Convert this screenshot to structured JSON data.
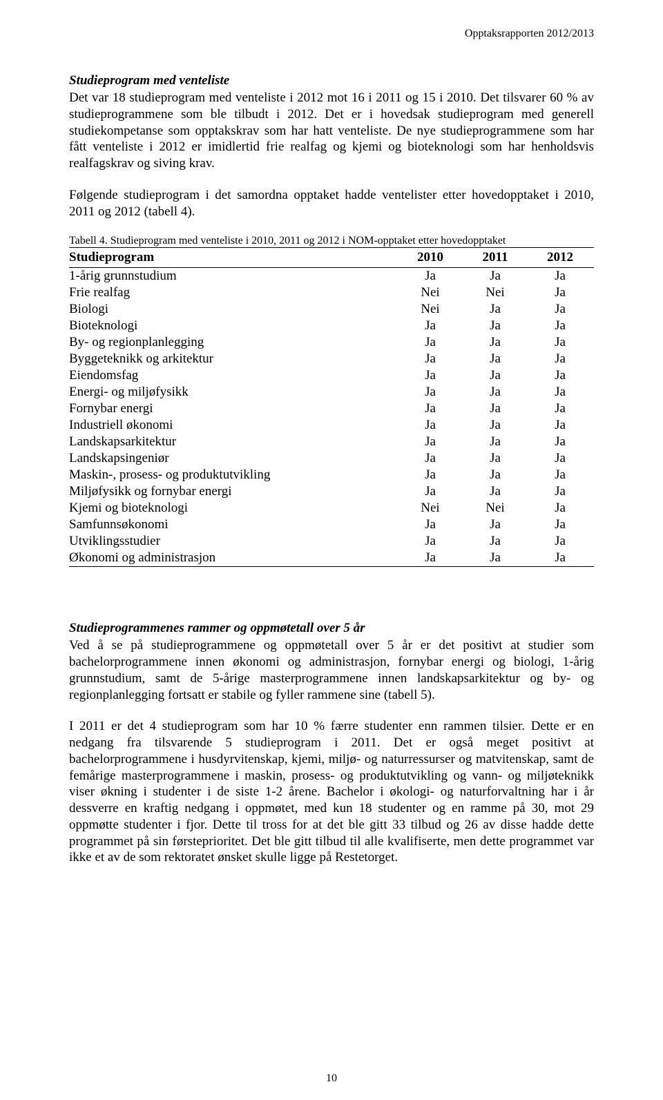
{
  "header_right": "Opptaksrapporten 2012/2013",
  "section1": {
    "title": "Studieprogram med venteliste",
    "para1": "Det var 18 studieprogram med venteliste i 2012 mot 16 i 2011 og 15 i 2010. Det tilsvarer 60 % av studieprogrammene som ble tilbudt i 2012. Det er i hovedsak studieprogram med generell studiekompetanse som opptakskrav som har hatt venteliste. De nye studieprogrammene som har fått venteliste i 2012 er imidlertid frie realfag og kjemi og bioteknologi som har henholdsvis realfagskrav og siving krav.",
    "para2": "Følgende studieprogram i det samordna opptaket hadde ventelister etter hovedopptaket i 2010, 2011 og 2012 (tabell 4).",
    "table_caption": "Tabell 4. Studieprogram med venteliste i 2010, 2011 og 2012 i NOM-opptaket etter hovedopptaket"
  },
  "table": {
    "col_program": "Studieprogram",
    "col_2010": "2010",
    "col_2011": "2011",
    "col_2012": "2012",
    "rows": [
      {
        "name": "1-årig grunnstudium",
        "y2010": "Ja",
        "y2011": "Ja",
        "y2012": "Ja"
      },
      {
        "name": "Frie realfag",
        "y2010": "Nei",
        "y2011": "Nei",
        "y2012": "Ja"
      },
      {
        "name": "Biologi",
        "y2010": "Nei",
        "y2011": "Ja",
        "y2012": "Ja"
      },
      {
        "name": "Bioteknologi",
        "y2010": "Ja",
        "y2011": "Ja",
        "y2012": "Ja"
      },
      {
        "name": "By- og regionplanlegging",
        "y2010": "Ja",
        "y2011": "Ja",
        "y2012": "Ja"
      },
      {
        "name": "Byggeteknikk og arkitektur",
        "y2010": "Ja",
        "y2011": "Ja",
        "y2012": "Ja"
      },
      {
        "name": "Eiendomsfag",
        "y2010": "Ja",
        "y2011": "Ja",
        "y2012": "Ja"
      },
      {
        "name": "Energi- og miljøfysikk",
        "y2010": "Ja",
        "y2011": "Ja",
        "y2012": "Ja"
      },
      {
        "name": "Fornybar energi",
        "y2010": "Ja",
        "y2011": "Ja",
        "y2012": "Ja"
      },
      {
        "name": "Industriell økonomi",
        "y2010": "Ja",
        "y2011": "Ja",
        "y2012": "Ja"
      },
      {
        "name": "Landskapsarkitektur",
        "y2010": "Ja",
        "y2011": "Ja",
        "y2012": "Ja"
      },
      {
        "name": "Landskapsingeniør",
        "y2010": "Ja",
        "y2011": "Ja",
        "y2012": "Ja"
      },
      {
        "name": "Maskin-, prosess- og produktutvikling",
        "y2010": "Ja",
        "y2011": "Ja",
        "y2012": "Ja"
      },
      {
        "name": "Miljøfysikk og fornybar energi",
        "y2010": "Ja",
        "y2011": "Ja",
        "y2012": "Ja"
      },
      {
        "name": "Kjemi og bioteknologi",
        "y2010": "Nei",
        "y2011": "Nei",
        "y2012": "Ja"
      },
      {
        "name": "Samfunnsøkonomi",
        "y2010": "Ja",
        "y2011": "Ja",
        "y2012": "Ja"
      },
      {
        "name": "Utviklingsstudier",
        "y2010": "Ja",
        "y2011": "Ja",
        "y2012": "Ja"
      },
      {
        "name": "Økonomi og administrasjon",
        "y2010": "Ja",
        "y2011": "Ja",
        "y2012": "Ja"
      }
    ]
  },
  "section2": {
    "title": "Studieprogrammenes rammer og oppmøtetall over 5 år",
    "para1": "Ved å se på studieprogrammene og oppmøtetall over 5 år er det positivt at studier som bachelorprogrammene innen økonomi og administrasjon, fornybar energi og biologi, 1-årig grunnstudium, samt de 5-årige masterprogrammene innen landskapsarkitektur og by- og regionplanlegging fortsatt er stabile og fyller rammene sine (tabell 5).",
    "para2": "I 2011 er det 4 studieprogram som har 10 % færre studenter enn rammen tilsier. Dette er en nedgang fra tilsvarende 5 studieprogram i 2011. Det er også meget positivt at bachelorprogrammene i husdyrvitenskap, kjemi, miljø- og naturressurser og matvitenskap, samt de femårige masterprogrammene i maskin, prosess- og produktutvikling og vann- og miljøteknikk viser økning i studenter i de siste 1-2 årene. Bachelor i økologi- og naturforvaltning har i år dessverre en kraftig nedgang i oppmøtet, med kun 18 studenter og en ramme på 30, mot 29 oppmøtte studenter i fjor. Dette til tross for at det ble gitt 33 tilbud og 26 av disse hadde dette programmet på sin førsteprioritet. Det ble gitt tilbud til alle kvalifiserte, men dette programmet var ikke et av de som rektoratet ønsket skulle ligge på Restetorget."
  },
  "page_number": "10"
}
